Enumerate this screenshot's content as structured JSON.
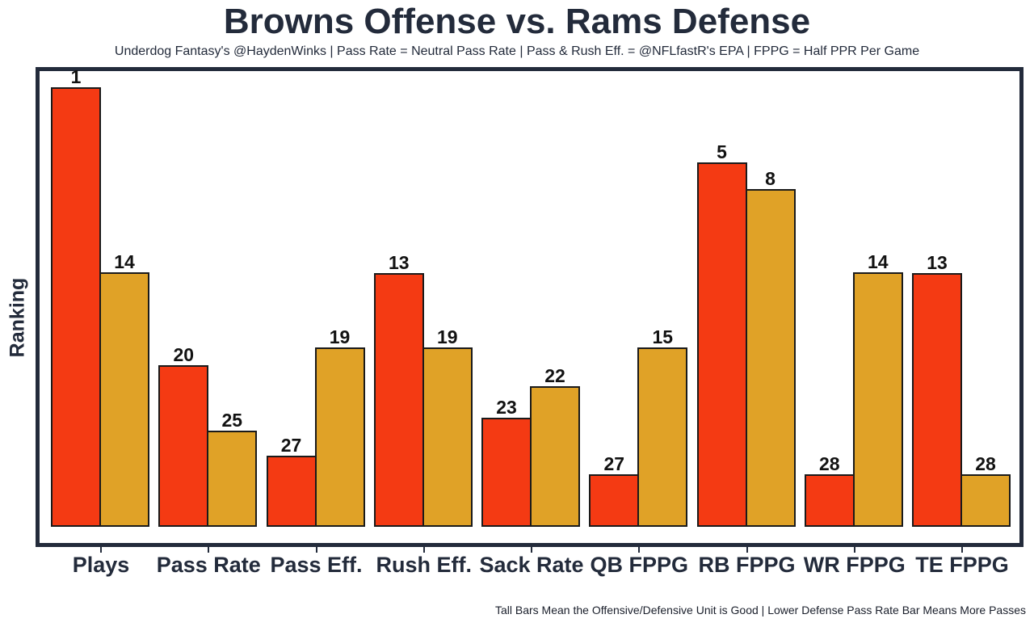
{
  "title": "Browns Offense vs. Rams Defense",
  "subtitle": "Underdog Fantasy's @HaydenWinks | Pass Rate = Neutral Pass Rate | Pass & Rush Eff. = @NFLfastR's EPA | FPPG = Half PPR Per Game",
  "footer": "Tall Bars Mean the Offensive/Defensive Unit is Good | Lower Defense Pass Rate Bar Means More Passes",
  "colors": {
    "browns_offense_red": "#F43A13",
    "rams_defense_gold": "#E0A227",
    "frame_navy": "#232B3B",
    "bar_outline": "#1A1A1A",
    "background": "#FFFFFF"
  },
  "chart_data": {
    "type": "bar",
    "title": "Browns Offense vs. Rams Defense",
    "xlabel": "",
    "ylabel": "Ranking",
    "legend_position": "none",
    "grid": false,
    "y_axis_ticks": "none (bar heights show stat strength; labels show league ranking, 1 = best)",
    "categories": [
      "Plays",
      "Pass Rate",
      "Pass Eff.",
      "Rush Eff.",
      "Sack Rate",
      "QB FPPG",
      "RB FPPG",
      "WR FPPG",
      "TE FPPG"
    ],
    "series": [
      {
        "name": "Browns Offense",
        "color": "#F43A13",
        "ranks": [
          1,
          20,
          27,
          13,
          23,
          27,
          5,
          28,
          13
        ],
        "height_frac": [
          0.966,
          0.355,
          0.156,
          0.558,
          0.24,
          0.115,
          0.801,
          0.115,
          0.558
        ]
      },
      {
        "name": "Rams Defense",
        "color": "#E0A227",
        "ranks": [
          14,
          25,
          19,
          19,
          22,
          15,
          8,
          14,
          28
        ],
        "height_frac": [
          0.56,
          0.211,
          0.394,
          0.394,
          0.309,
          0.394,
          0.742,
          0.56,
          0.115
        ]
      }
    ]
  }
}
